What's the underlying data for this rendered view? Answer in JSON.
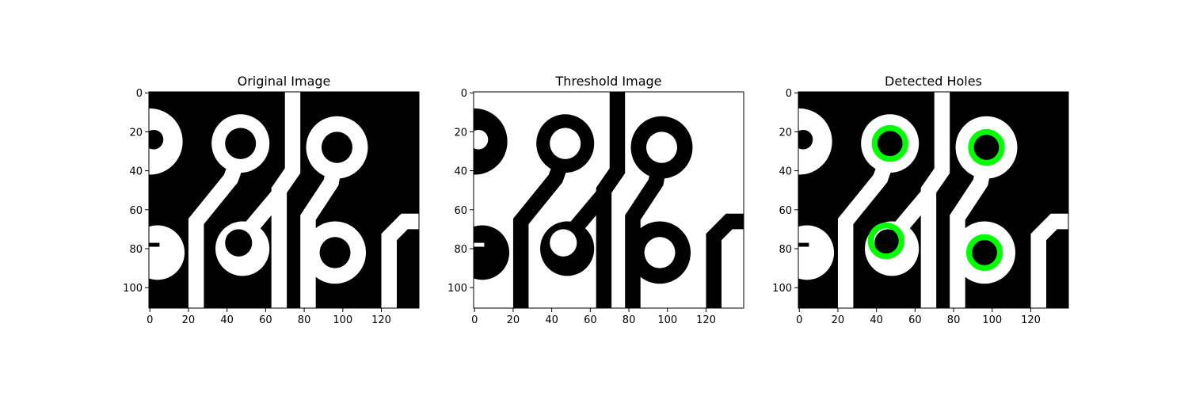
{
  "chart_data": [
    {
      "type": "image",
      "title": "Original Image",
      "background": "#000000",
      "foreground": "#ffffff",
      "xlim": [
        -0.5,
        139.5
      ],
      "ylim": [
        110.5,
        -0.5
      ],
      "xticks": [
        0,
        20,
        40,
        60,
        80,
        100,
        120
      ],
      "yticks": [
        0,
        20,
        40,
        60,
        80,
        100
      ]
    },
    {
      "type": "image",
      "title": "Threshold Image",
      "background": "#ffffff",
      "foreground": "#000000",
      "xlim": [
        -0.5,
        139.5
      ],
      "ylim": [
        110.5,
        -0.5
      ],
      "xticks": [
        0,
        20,
        40,
        60,
        80,
        100,
        120
      ],
      "yticks": [
        0,
        20,
        40,
        60,
        80,
        100
      ]
    },
    {
      "type": "image",
      "title": "Detected Holes",
      "background": "#000000",
      "foreground": "#ffffff",
      "xlim": [
        -0.5,
        139.5
      ],
      "ylim": [
        110.5,
        -0.5
      ],
      "xticks": [
        0,
        20,
        40,
        60,
        80,
        100,
        120
      ],
      "yticks": [
        0,
        20,
        40,
        60,
        80,
        100
      ],
      "x": [
        47,
        97,
        45,
        96
      ],
      "values": [
        26,
        28,
        76,
        82
      ],
      "color": "#00ff00"
    }
  ]
}
